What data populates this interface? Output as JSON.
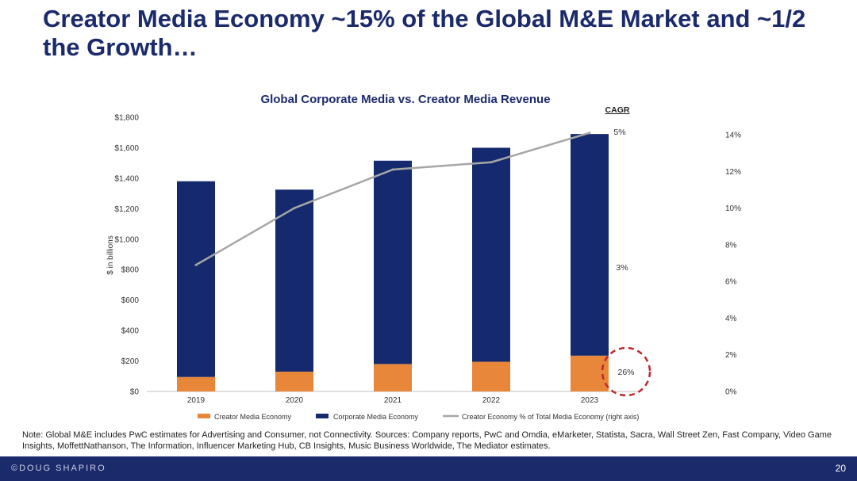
{
  "slide": {
    "title": "Creator Media Economy ~15% of the Global M&E Market and ~1/2 the Growth…",
    "note": "Note: Global M&E includes PwC estimates for Advertising and Consumer, not Connectivity. Sources: Company reports, PwC and Omdia, eMarketer, Statista, Sacra, Wall Street Zen, Fast Company, Video Game Insights, MoffettNathanson, The Information, Influencer Marketing Hub, CB Insights, Music Business Worldwide, The Mediator estimates.",
    "footer_brand": "©DOUG SHAPIRO",
    "page_number": "20"
  },
  "colors": {
    "title": "#1b2a6b",
    "creator": "#e8873a",
    "corporate": "#152a6e",
    "line": "#a6a6a6",
    "highlight_circle": "#c0272d",
    "footer": "#1b2a6b"
  },
  "chart_data": {
    "type": "bar",
    "stacked": true,
    "title": "Global Corporate Media vs. Creator Media Revenue",
    "ylabel": "$ in billions",
    "ylim": [
      0,
      1800
    ],
    "y_ticks": [
      0,
      200,
      400,
      600,
      800,
      1000,
      1200,
      1400,
      1600,
      1800
    ],
    "y_tick_labels": [
      "$0",
      "$200",
      "$400",
      "$600",
      "$800",
      "$1,000",
      "$1,200",
      "$1,400",
      "$1,600",
      "$1,800"
    ],
    "y2lim": [
      0,
      15
    ],
    "y2_ticks": [
      0,
      2,
      4,
      6,
      8,
      10,
      12,
      14
    ],
    "y2_tick_labels": [
      "0%",
      "2%",
      "4%",
      "6%",
      "8%",
      "10%",
      "12%",
      "14%"
    ],
    "categories": [
      "2019",
      "2020",
      "2021",
      "2022",
      "2023"
    ],
    "series": [
      {
        "name": "Creator Media Economy",
        "type": "bar",
        "values": [
          95,
          130,
          180,
          195,
          235
        ]
      },
      {
        "name": "Corporate Media Economy",
        "type": "bar",
        "values": [
          1285,
          1195,
          1335,
          1405,
          1455
        ]
      },
      {
        "name": "Creator Economy % of Total Media Economy (right axis)",
        "type": "line",
        "axis": "right",
        "values": [
          6.9,
          10.0,
          12.1,
          12.5,
          14.1
        ]
      }
    ],
    "grid": false,
    "legend": "bottom",
    "cagr": {
      "label": "CAGR",
      "values": [
        "5%",
        "3%",
        "26%"
      ]
    }
  }
}
